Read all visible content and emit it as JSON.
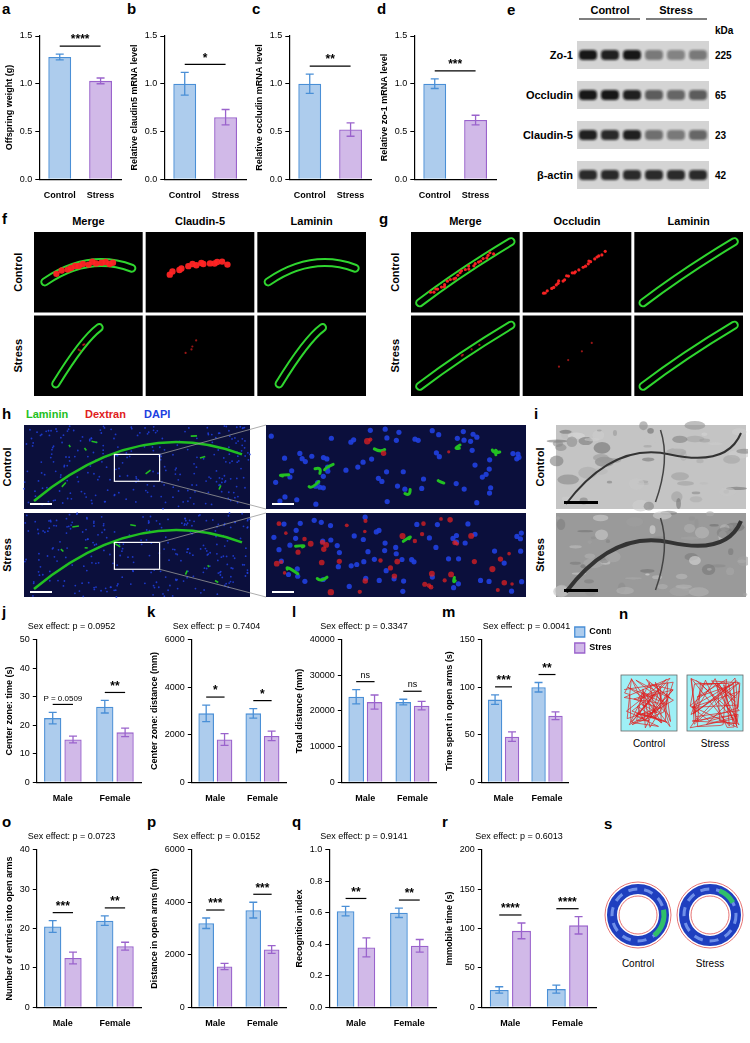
{
  "chart_data": [
    {
      "panel": "a",
      "type": "bar",
      "y_label": "Offspring weight (g)",
      "categories": [
        "Control",
        "Stress"
      ],
      "values": [
        1.28,
        1.03
      ],
      "errors": [
        0.03,
        0.03
      ],
      "colors": [
        "#4a8fd6",
        "#9a63cc"
      ],
      "ylim": [
        0,
        1.5
      ],
      "yticks": [
        {
          "value": 0,
          "label": "0.0"
        },
        {
          "value": 0.5,
          "label": "0.5"
        },
        {
          "value": 1,
          "label": "1.0"
        },
        {
          "value": 1.5,
          "label": "1.5"
        }
      ],
      "grid": false,
      "annotations": [
        {
          "text": "****"
        }
      ]
    },
    {
      "panel": "b",
      "type": "bar",
      "y_label": "Relative claudin5 mRNA level",
      "categories": [
        "Control",
        "Stress"
      ],
      "values": [
        1.0,
        0.65
      ],
      "errors": [
        0.12,
        0.08
      ],
      "colors": [
        "#4a8fd6",
        "#9a63cc"
      ],
      "ylim": [
        0,
        1.5
      ],
      "yticks": [
        {
          "value": 0,
          "label": "0.0"
        },
        {
          "value": 0.5,
          "label": "0.5"
        },
        {
          "value": 1,
          "label": "1.0"
        },
        {
          "value": 1.5,
          "label": "1.5"
        }
      ],
      "grid": false,
      "annotations": [
        {
          "text": "*"
        }
      ]
    },
    {
      "panel": "c",
      "type": "bar",
      "y_label": "Relative occludin mRNA level",
      "categories": [
        "Control",
        "Stress"
      ],
      "values": [
        1.0,
        0.52
      ],
      "errors": [
        0.1,
        0.07
      ],
      "colors": [
        "#4a8fd6",
        "#9a63cc"
      ],
      "ylim": [
        0,
        1.5
      ],
      "yticks": [
        {
          "value": 0,
          "label": "0.0"
        },
        {
          "value": 0.5,
          "label": "0.5"
        },
        {
          "value": 1,
          "label": "1.0"
        },
        {
          "value": 1.5,
          "label": "1.5"
        }
      ],
      "grid": false,
      "annotations": [
        {
          "text": "**"
        }
      ]
    },
    {
      "panel": "d",
      "type": "bar",
      "y_label": "Relative zo-1 mRNA level",
      "categories": [
        "Control",
        "Stress"
      ],
      "values": [
        1.0,
        0.62
      ],
      "errors": [
        0.05,
        0.05
      ],
      "colors": [
        "#4a8fd6",
        "#9a63cc"
      ],
      "ylim": [
        0,
        1.5
      ],
      "yticks": [
        {
          "value": 0,
          "label": "0.0"
        },
        {
          "value": 0.5,
          "label": "0.5"
        },
        {
          "value": 1,
          "label": "1.0"
        },
        {
          "value": 1.5,
          "label": "1.5"
        }
      ],
      "grid": false,
      "annotations": [
        {
          "text": "***"
        }
      ]
    },
    {
      "panel": "j",
      "type": "bar",
      "title": "Sex effect: p = 0.0952",
      "y_label": "Center zone: time (s)",
      "categories": [
        "Male",
        "Female"
      ],
      "series": [
        {
          "name": "Control",
          "color": "#4a8fd6",
          "values": [
            22.5,
            26.5
          ],
          "errors": [
            2.0,
            2.2
          ]
        },
        {
          "name": "Stress",
          "color": "#9a63cc",
          "values": [
            15.0,
            17.5
          ],
          "errors": [
            1.2,
            1.5
          ]
        }
      ],
      "ylim": [
        0,
        50
      ],
      "yticks": [
        0,
        10,
        20,
        30,
        40,
        50
      ],
      "grid": false,
      "annotations": [
        {
          "category": "Male",
          "text": "P = 0.0509"
        },
        {
          "category": "Female",
          "text": "**"
        }
      ]
    },
    {
      "panel": "k",
      "type": "bar",
      "title": "Sex effect: p = 0.7404",
      "y_label": "Center zone: distance (mm)",
      "categories": [
        "Male",
        "Female"
      ],
      "series": [
        {
          "name": "Control",
          "color": "#4a8fd6",
          "values": [
            2900,
            2900
          ],
          "errors": [
            350,
            200
          ]
        },
        {
          "name": "Stress",
          "color": "#9a63cc",
          "values": [
            1800,
            1950
          ],
          "errors": [
            250,
            200
          ]
        }
      ],
      "ylim": [
        0,
        6000
      ],
      "yticks": [
        0,
        2000,
        4000,
        6000
      ],
      "grid": false,
      "annotations": [
        {
          "category": "Male",
          "text": "*"
        },
        {
          "category": "Female",
          "text": "*"
        }
      ]
    },
    {
      "panel": "l",
      "type": "bar",
      "title": "Sex effect: p = 0.3347",
      "y_label": "Total distance (mm)",
      "categories": [
        "Male",
        "Female"
      ],
      "series": [
        {
          "name": "Control",
          "color": "#4a8fd6",
          "values": [
            24000,
            22500
          ],
          "errors": [
            2000,
            800
          ]
        },
        {
          "name": "Stress",
          "color": "#9a63cc",
          "values": [
            22500,
            21500
          ],
          "errors": [
            2000,
            1200
          ]
        }
      ],
      "ylim": [
        0,
        40000
      ],
      "yticks": [
        0,
        10000,
        20000,
        30000,
        40000
      ],
      "grid": false,
      "annotations": [
        {
          "category": "Male",
          "text": "ns"
        },
        {
          "category": "Female",
          "text": "ns"
        }
      ]
    },
    {
      "panel": "m",
      "type": "bar",
      "title": "Sex effect: p = 0.0041",
      "y_label": "Time spent in open arms (s)",
      "categories": [
        "Male",
        "Female"
      ],
      "series": [
        {
          "name": "Control",
          "color": "#4a8fd6",
          "values": [
            87,
            100
          ],
          "errors": [
            5,
            5
          ]
        },
        {
          "name": "Stress",
          "color": "#9a63cc",
          "values": [
            48,
            70
          ],
          "errors": [
            5,
            4
          ]
        }
      ],
      "ylim": [
        0,
        150
      ],
      "yticks": [
        0,
        50,
        100,
        150
      ],
      "grid": false,
      "legend": "right",
      "annotations": [
        {
          "category": "Male",
          "text": "***"
        },
        {
          "category": "Female",
          "text": "**"
        }
      ]
    },
    {
      "panel": "o",
      "type": "bar",
      "title": "Sex effect: p = 0.0723",
      "y_label": "Number of entries into open arms",
      "categories": [
        "Male",
        "Female"
      ],
      "series": [
        {
          "name": "Control",
          "color": "#4a8fd6",
          "values": [
            20.5,
            22.0
          ],
          "errors": [
            1.5,
            1.2
          ]
        },
        {
          "name": "Stress",
          "color": "#9a63cc",
          "values": [
            12.5,
            15.5
          ],
          "errors": [
            1.5,
            1.0
          ]
        }
      ],
      "ylim": [
        0,
        40
      ],
      "yticks": [
        0,
        10,
        20,
        30,
        40
      ],
      "grid": false,
      "annotations": [
        {
          "category": "Male",
          "text": "***"
        },
        {
          "category": "Female",
          "text": "**"
        }
      ]
    },
    {
      "panel": "p",
      "type": "bar",
      "title": "Sex effect: p = 0.0152",
      "y_label": "Distance in open arms (mm)",
      "categories": [
        "Male",
        "Female"
      ],
      "series": [
        {
          "name": "Control",
          "color": "#4a8fd6",
          "values": [
            3200,
            3700
          ],
          "errors": [
            200,
            300
          ]
        },
        {
          "name": "Stress",
          "color": "#9a63cc",
          "values": [
            1550,
            2200
          ],
          "errors": [
            120,
            150
          ]
        }
      ],
      "ylim": [
        0,
        6000
      ],
      "yticks": [
        0,
        2000,
        4000,
        6000
      ],
      "grid": false,
      "annotations": [
        {
          "category": "Male",
          "text": "***"
        },
        {
          "category": "Female",
          "text": "***"
        }
      ]
    },
    {
      "panel": "q",
      "type": "bar",
      "title": "Sex effect: p = 0.9141",
      "y_label": "Recognition index",
      "categories": [
        "Male",
        "Female"
      ],
      "series": [
        {
          "name": "Control",
          "color": "#4a8fd6",
          "values": [
            0.61,
            0.6
          ],
          "errors": [
            0.03,
            0.03
          ]
        },
        {
          "name": "Stress",
          "color": "#9a63cc",
          "values": [
            0.38,
            0.39
          ],
          "errors": [
            0.06,
            0.04
          ]
        }
      ],
      "ylim": [
        0,
        1
      ],
      "yticks": [
        {
          "value": 0,
          "label": "0.0"
        },
        {
          "value": 0.2,
          "label": "0.2"
        },
        {
          "value": 0.4,
          "label": "0.4"
        },
        {
          "value": 0.6,
          "label": "0.6"
        },
        {
          "value": 0.8,
          "label": "0.8"
        },
        {
          "value": 1,
          "label": "1.0"
        }
      ],
      "grid": false,
      "annotations": [
        {
          "category": "Male",
          "text": "**"
        },
        {
          "category": "Female",
          "text": "**"
        }
      ]
    },
    {
      "panel": "r",
      "type": "bar",
      "title": "Sex effect: p = 0.6013",
      "y_label": "Immobile time (s)",
      "categories": [
        "Male",
        "Female"
      ],
      "series": [
        {
          "name": "Control",
          "color": "#4a8fd6",
          "values": [
            22,
            23
          ],
          "errors": [
            4,
            5
          ]
        },
        {
          "name": "Stress",
          "color": "#9a63cc",
          "values": [
            97,
            104
          ],
          "errors": [
            10,
            11
          ]
        }
      ],
      "ylim": [
        0,
        200
      ],
      "yticks": [
        0,
        50,
        100,
        150,
        200
      ],
      "grid": false,
      "annotations": [
        {
          "category": "Male",
          "text": "****"
        },
        {
          "category": "Female",
          "text": "****"
        }
      ]
    }
  ],
  "blot": {
    "panel": "e",
    "groups": [
      "Control",
      "Stress"
    ],
    "unit": "kDa",
    "rows": [
      {
        "label": "Zo-1",
        "kda": 225
      },
      {
        "label": "Occludin",
        "kda": 65
      },
      {
        "label": "Claudin-5",
        "kda": 23
      },
      {
        "label": "β-actin",
        "kda": 42
      }
    ]
  },
  "micrographs": [
    {
      "panel": "f",
      "columns": [
        "Merge",
        "Claudin-5",
        "Laminin"
      ],
      "rows": [
        "Control",
        "Stress"
      ]
    },
    {
      "panel": "g",
      "columns": [
        "Merge",
        "Occludin",
        "Laminin"
      ],
      "rows": [
        "Control",
        "Stress"
      ]
    },
    {
      "panel": "h",
      "stains": [
        {
          "name": "Laminin",
          "color": "#22c022"
        },
        {
          "name": "Dextran",
          "color": "#e02020"
        },
        {
          "name": "DAPI",
          "color": "#2040e0"
        }
      ],
      "rows": [
        "Control",
        "Stress"
      ]
    },
    {
      "panel": "i",
      "rows": [
        "Control",
        "Stress"
      ]
    }
  ],
  "traces": [
    {
      "panel": "n",
      "labels": [
        "Control",
        "Stress"
      ]
    },
    {
      "panel": "s",
      "labels": [
        "Control",
        "Stress"
      ]
    }
  ]
}
